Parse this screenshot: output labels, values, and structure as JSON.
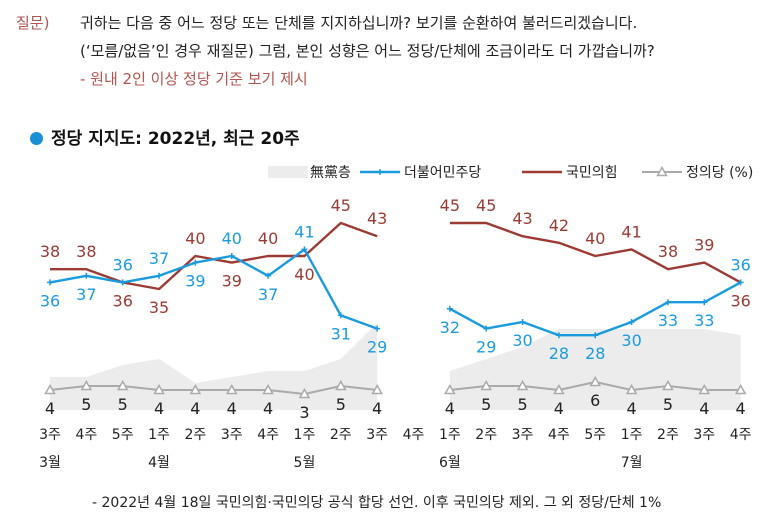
{
  "question": {
    "label": "질문)",
    "line1": "귀하는 다음 중 어느 정당 또는 단체를 지지하십니까? 보기를 순환하여 불러드리겠습니다.",
    "line2": "(‘모름/없음’인 경우 재질문) 그럼, 본인 성향은 어느 정당/단체에 조금이라도 더 가깝습니까?",
    "line3": "- 원내 2인 이상 정당 기준 보기 제시"
  },
  "footer": "- 2022년 4월 18일 국민의힘·국민의당 공식 합당 선언. 이후 국민의당 제외. 그 외 정당/단체 1%",
  "colors": {
    "minjoo": "#1a9be0",
    "ppp": "#9b3b34",
    "justice": "#aaaaaa",
    "mudang": "#ececec",
    "title_dot": "#1a8fd6"
  },
  "chart_data": {
    "type": "line",
    "title": "정당 지지도: 2022년, 최근 20주",
    "x": [
      "3주",
      "4주",
      "5주",
      "1주",
      "2주",
      "3주",
      "4주",
      "1주",
      "2주",
      "3주",
      "4주",
      "1주",
      "2주",
      "3주",
      "4주",
      "5주",
      "1주",
      "2주",
      "3주",
      "4주"
    ],
    "months": [
      {
        "label": "3월",
        "start_index": 0
      },
      {
        "label": "4월",
        "start_index": 3
      },
      {
        "label": "5월",
        "start_index": 7
      },
      {
        "label": "6월",
        "start_index": 11
      },
      {
        "label": "7월",
        "start_index": 16
      }
    ],
    "legend": [
      "無黨층",
      "더불어민주당",
      "국민의힘",
      "정의당 (%)"
    ],
    "legend_position": "top-right",
    "series": [
      {
        "name": "더불어민주당",
        "values": [
          36,
          37,
          36,
          37,
          39,
          40,
          37,
          41,
          31,
          29,
          null,
          32,
          29,
          30,
          28,
          28,
          30,
          33,
          33,
          36
        ]
      },
      {
        "name": "국민의힘",
        "values": [
          38,
          38,
          36,
          35,
          40,
          39,
          40,
          40,
          45,
          43,
          null,
          45,
          45,
          43,
          42,
          40,
          41,
          38,
          39,
          36
        ]
      },
      {
        "name": "정의당 (%)",
        "values": [
          4,
          5,
          5,
          4,
          4,
          4,
          4,
          3,
          5,
          4,
          null,
          4,
          5,
          5,
          4,
          6,
          4,
          5,
          4,
          4
        ]
      },
      {
        "name": "無黨층",
        "values": [
          26,
          26,
          28,
          29,
          25,
          26,
          27,
          27,
          29,
          35,
          null,
          27,
          29,
          31,
          34,
          34,
          34,
          34,
          34,
          33
        ]
      }
    ],
    "grid": false
  }
}
